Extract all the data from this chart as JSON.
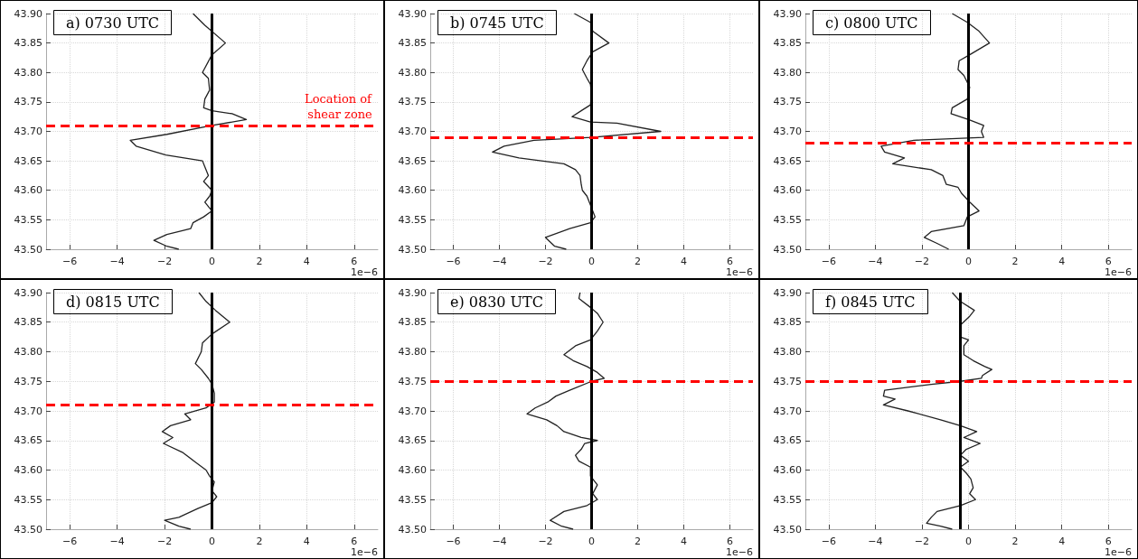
{
  "chart_data": [
    {
      "type": "line",
      "title": "a) 0730 UTC",
      "xlabel": "1e−6",
      "xlim": [
        -7,
        7
      ],
      "xticks": [
        {
          "value": -6,
          "label": "−6"
        },
        {
          "value": -4,
          "label": "−4"
        },
        {
          "value": -2,
          "label": "−2"
        },
        0,
        2,
        4,
        6
      ],
      "ylim": [
        43.5,
        43.9
      ],
      "yticks": [
        {
          "value": 43.5,
          "label": "43.50"
        },
        43.55,
        {
          "value": 43.6,
          "label": "43.60"
        },
        43.65,
        {
          "value": 43.7,
          "label": "43.70"
        },
        43.75,
        {
          "value": 43.8,
          "label": "43.80"
        },
        43.85,
        {
          "value": 43.9,
          "label": "43.90"
        }
      ],
      "grid": true,
      "marker": "none",
      "series": [
        {
          "color": "#222222",
          "x": [
            -0.8,
            -0.3,
            0.57,
            0,
            -0.4,
            -0.15,
            -0.1,
            -0.3,
            -0.35,
            0,
            0.85,
            1.45,
            0,
            -1.9,
            -3.45,
            -3.2,
            -1.95,
            -0.4,
            -0.3,
            -0.15,
            -0.35,
            0,
            -0.1,
            -0.3,
            0,
            -0.35,
            -0.8,
            -0.9,
            -1.9,
            -2.45,
            -1.9,
            -1.4
          ],
          "values": [
            43.9,
            43.88,
            43.85,
            43.83,
            43.8,
            43.79,
            43.77,
            43.755,
            43.74,
            43.735,
            43.73,
            43.72,
            43.71,
            43.695,
            43.685,
            43.675,
            43.66,
            43.65,
            43.64,
            43.625,
            43.615,
            43.6,
            43.59,
            43.58,
            43.565,
            43.555,
            43.545,
            43.535,
            43.525,
            43.515,
            43.505,
            43.5
          ]
        }
      ],
      "ref_lines": [
        {
          "axis": "x",
          "value": 0,
          "color": "#000000",
          "line_style": "solid"
        },
        {
          "axis": "y",
          "value": 43.71,
          "color": "#ff0000",
          "line_style": "dashed",
          "label": "Location of shear zone"
        }
      ]
    },
    {
      "type": "line",
      "title": "b) 0745 UTC",
      "xlabel": "1e−6",
      "xlim": [
        -7,
        7
      ],
      "xticks": [
        {
          "value": -6,
          "label": "−6"
        },
        {
          "value": -4,
          "label": "−4"
        },
        {
          "value": -2,
          "label": "−2"
        },
        0,
        2,
        4,
        6
      ],
      "ylim": [
        43.5,
        43.9
      ],
      "yticks": [
        {
          "value": 43.5,
          "label": "43.50"
        },
        43.55,
        {
          "value": 43.6,
          "label": "43.60"
        },
        43.65,
        {
          "value": 43.7,
          "label": "43.70"
        },
        43.75,
        {
          "value": 43.8,
          "label": "43.80"
        },
        43.85,
        {
          "value": 43.9,
          "label": "43.90"
        }
      ],
      "grid": true,
      "marker": "none",
      "series": [
        {
          "color": "#222222",
          "x": [
            -0.75,
            -0.05,
            0.05,
            0.75,
            0.05,
            -0.2,
            -0.4,
            -0.2,
            -0.05,
            0,
            -0.05,
            -0.45,
            -0.85,
            -0.05,
            1.1,
            3.0,
            0,
            -2.5,
            -3.8,
            -4.3,
            -3.15,
            -1.2,
            -0.7,
            -0.5,
            -0.45,
            -0.4,
            -0.2,
            -0.05,
            0.15,
            -0.05,
            -0.95,
            -2.0,
            -1.6,
            -1.1
          ],
          "values": [
            43.9,
            43.885,
            43.87,
            43.85,
            43.835,
            43.82,
            43.805,
            43.79,
            43.78,
            43.76,
            43.745,
            43.735,
            43.725,
            43.716,
            43.714,
            43.7,
            43.69,
            43.685,
            43.675,
            43.665,
            43.655,
            43.645,
            43.635,
            43.625,
            43.61,
            43.6,
            43.59,
            43.575,
            43.555,
            43.545,
            43.535,
            43.52,
            43.505,
            43.5
          ]
        }
      ],
      "ref_lines": [
        {
          "axis": "x",
          "value": 0,
          "color": "#000000",
          "line_style": "solid"
        },
        {
          "axis": "y",
          "value": 43.69,
          "color": "#ff0000",
          "line_style": "dashed"
        }
      ]
    },
    {
      "type": "line",
      "title": "c) 0800 UTC",
      "xlabel": "1e−6",
      "xlim": [
        -7,
        7
      ],
      "xticks": [
        {
          "value": -6,
          "label": "−6"
        },
        {
          "value": -4,
          "label": "−4"
        },
        {
          "value": -2,
          "label": "−2"
        },
        0,
        2,
        4,
        6
      ],
      "ylim": [
        43.5,
        43.9
      ],
      "yticks": [
        {
          "value": 43.5,
          "label": "43.50"
        },
        43.55,
        {
          "value": 43.6,
          "label": "43.60"
        },
        43.65,
        {
          "value": 43.7,
          "label": "43.70"
        },
        43.75,
        {
          "value": 43.8,
          "label": "43.80"
        },
        43.85,
        {
          "value": 43.9,
          "label": "43.90"
        }
      ],
      "grid": true,
      "marker": "none",
      "series": [
        {
          "color": "#222222",
          "x": [
            -0.7,
            -0.05,
            0.45,
            0.9,
            0.05,
            -0.4,
            -0.45,
            -0.2,
            0.05,
            -0.05,
            -0.7,
            -0.75,
            0,
            0.65,
            0.55,
            0.65,
            -2.35,
            -3.75,
            -3.6,
            -2.75,
            -3.25,
            -1.6,
            -1.1,
            -0.95,
            -0.45,
            -0.3,
            0.05,
            0.45,
            -0.05,
            -0.2,
            -1.6,
            -1.9,
            -1.35,
            -0.85
          ],
          "values": [
            43.9,
            43.885,
            43.87,
            43.85,
            43.83,
            43.82,
            43.805,
            43.795,
            43.775,
            43.755,
            43.74,
            43.73,
            43.72,
            43.71,
            43.7,
            43.69,
            43.685,
            43.675,
            43.665,
            43.655,
            43.645,
            43.635,
            43.625,
            43.61,
            43.605,
            43.595,
            43.58,
            43.565,
            43.555,
            43.54,
            43.53,
            43.52,
            43.51,
            43.5
          ]
        }
      ],
      "ref_lines": [
        {
          "axis": "x",
          "value": 0,
          "color": "#000000",
          "line_style": "solid"
        },
        {
          "axis": "y",
          "value": 43.68,
          "color": "#ff0000",
          "line_style": "dashed"
        }
      ]
    },
    {
      "type": "line",
      "title": "d) 0815 UTC",
      "xlabel": "1e−6",
      "xlim": [
        -7,
        7
      ],
      "xticks": [
        {
          "value": -6,
          "label": "−6"
        },
        {
          "value": -4,
          "label": "−4"
        },
        {
          "value": -2,
          "label": "−2"
        },
        0,
        2,
        4,
        6
      ],
      "ylim": [
        43.5,
        43.9
      ],
      "yticks": [
        {
          "value": 43.5,
          "label": "43.50"
        },
        43.55,
        {
          "value": 43.6,
          "label": "43.60"
        },
        43.65,
        {
          "value": 43.7,
          "label": "43.70"
        },
        43.75,
        {
          "value": 43.8,
          "label": "43.80"
        },
        43.85,
        {
          "value": 43.9,
          "label": "43.90"
        }
      ],
      "grid": true,
      "marker": "none",
      "series": [
        {
          "color": "#222222",
          "x": [
            -0.55,
            -0.25,
            0.15,
            0.75,
            0,
            -0.4,
            -0.45,
            -0.7,
            -0.45,
            -0.15,
            0,
            0.1,
            0.1,
            -0.25,
            -1.15,
            -0.9,
            -1.75,
            -2.1,
            -1.65,
            -2.05,
            -1.25,
            -0.75,
            -0.25,
            -0.1,
            0.1,
            0,
            0.2,
            0,
            -0.6,
            -1.4,
            -2.0,
            -1.4,
            -0.9
          ],
          "values": [
            43.9,
            43.885,
            43.87,
            43.85,
            43.83,
            43.815,
            43.8,
            43.78,
            43.77,
            43.755,
            43.745,
            43.73,
            43.715,
            43.705,
            43.695,
            43.685,
            43.675,
            43.665,
            43.655,
            43.645,
            43.63,
            43.615,
            43.6,
            43.59,
            43.58,
            43.565,
            43.555,
            43.545,
            43.535,
            43.52,
            43.515,
            43.505,
            43.5
          ]
        }
      ],
      "ref_lines": [
        {
          "axis": "x",
          "value": 0,
          "color": "#000000",
          "line_style": "solid"
        },
        {
          "axis": "y",
          "value": 43.71,
          "color": "#ff0000",
          "line_style": "dashed"
        }
      ]
    },
    {
      "type": "line",
      "title": "e) 0830 UTC",
      "xlabel": "1e−6",
      "xlim": [
        -7,
        7
      ],
      "xticks": [
        {
          "value": -6,
          "label": "−6"
        },
        {
          "value": -4,
          "label": "−4"
        },
        {
          "value": -2,
          "label": "−2"
        },
        0,
        2,
        4,
        6
      ],
      "ylim": [
        43.5,
        43.9
      ],
      "yticks": [
        {
          "value": 43.5,
          "label": "43.50"
        },
        43.55,
        {
          "value": 43.6,
          "label": "43.60"
        },
        43.65,
        {
          "value": 43.7,
          "label": "43.70"
        },
        43.75,
        {
          "value": 43.8,
          "label": "43.80"
        },
        43.85,
        {
          "value": 43.9,
          "label": "43.90"
        }
      ],
      "grid": true,
      "marker": "none",
      "series": [
        {
          "color": "#222222",
          "x": [
            -0.5,
            -0.55,
            -0.05,
            0.25,
            0.5,
            0.25,
            -0.05,
            -0.7,
            -1.2,
            -0.8,
            -0.2,
            0.25,
            0.55,
            0,
            -0.95,
            -1.55,
            -1.9,
            -2.45,
            -2.8,
            -1.95,
            -1.5,
            -1.2,
            -0.45,
            0.25,
            -0.3,
            -0.45,
            -0.7,
            -0.55,
            -0.05,
            -0.05,
            0.25,
            0.05,
            0.25,
            -0.2,
            -1.2,
            -1.8,
            -1.3,
            -0.8
          ],
          "values": [
            43.9,
            43.89,
            43.875,
            43.865,
            43.85,
            43.835,
            43.82,
            43.81,
            43.795,
            43.785,
            43.775,
            43.765,
            43.755,
            43.75,
            43.735,
            43.725,
            43.715,
            43.705,
            43.695,
            43.685,
            43.675,
            43.665,
            43.655,
            43.65,
            43.645,
            43.635,
            43.625,
            43.615,
            43.605,
            43.59,
            43.575,
            43.56,
            43.55,
            43.54,
            43.53,
            43.515,
            43.505,
            43.5
          ]
        }
      ],
      "ref_lines": [
        {
          "axis": "x",
          "value": 0,
          "color": "#000000",
          "line_style": "solid"
        },
        {
          "axis": "y",
          "value": 43.749,
          "color": "#ff0000",
          "line_style": "dashed"
        }
      ]
    },
    {
      "type": "line",
      "title": "f) 0845 UTC",
      "xlabel": "1e−6",
      "xlim": [
        -7,
        7
      ],
      "xticks": [
        {
          "value": -6,
          "label": "−6"
        },
        {
          "value": -4,
          "label": "−4"
        },
        {
          "value": -2,
          "label": "−2"
        },
        0,
        2,
        4,
        6
      ],
      "ylim": [
        43.5,
        43.9
      ],
      "yticks": [
        {
          "value": 43.5,
          "label": "43.50"
        },
        43.55,
        {
          "value": 43.6,
          "label": "43.60"
        },
        43.65,
        {
          "value": 43.7,
          "label": "43.70"
        },
        43.75,
        {
          "value": 43.8,
          "label": "43.80"
        },
        43.85,
        {
          "value": 43.9,
          "label": "43.90"
        }
      ],
      "grid": true,
      "marker": "none",
      "series": [
        {
          "color": "#222222",
          "x": [
            -0.7,
            -0.35,
            0.25,
            0.05,
            -0.35,
            -0.35,
            0,
            -0.2,
            -0.2,
            0.2,
            0.7,
            1.0,
            0.6,
            0.55,
            -0.35,
            -1.6,
            -3.6,
            -3.65,
            -3.15,
            -3.65,
            -2.6,
            -1.2,
            -0.35,
            0.35,
            -0.2,
            0.5,
            -0.1,
            -0.35,
            0,
            -0.35,
            -0.1,
            0.1,
            0.2,
            0.05,
            0.3,
            -0.35,
            -1.35,
            -1.6,
            -1.8,
            -1.2,
            -0.7
          ],
          "values": [
            43.9,
            43.885,
            43.87,
            43.86,
            43.845,
            43.825,
            43.82,
            43.81,
            43.795,
            43.785,
            43.775,
            43.77,
            43.76,
            43.755,
            43.75,
            43.745,
            43.735,
            43.725,
            43.72,
            43.71,
            43.7,
            43.685,
            43.675,
            43.665,
            43.655,
            43.645,
            43.635,
            43.625,
            43.615,
            43.605,
            43.595,
            43.585,
            43.57,
            43.56,
            43.55,
            43.54,
            43.53,
            43.52,
            43.51,
            43.505,
            43.5
          ]
        }
      ],
      "ref_lines": [
        {
          "axis": "x",
          "value": -0.35,
          "color": "#000000",
          "line_style": "solid"
        },
        {
          "axis": "y",
          "value": 43.749,
          "color": "#ff0000",
          "line_style": "dashed"
        }
      ]
    }
  ]
}
